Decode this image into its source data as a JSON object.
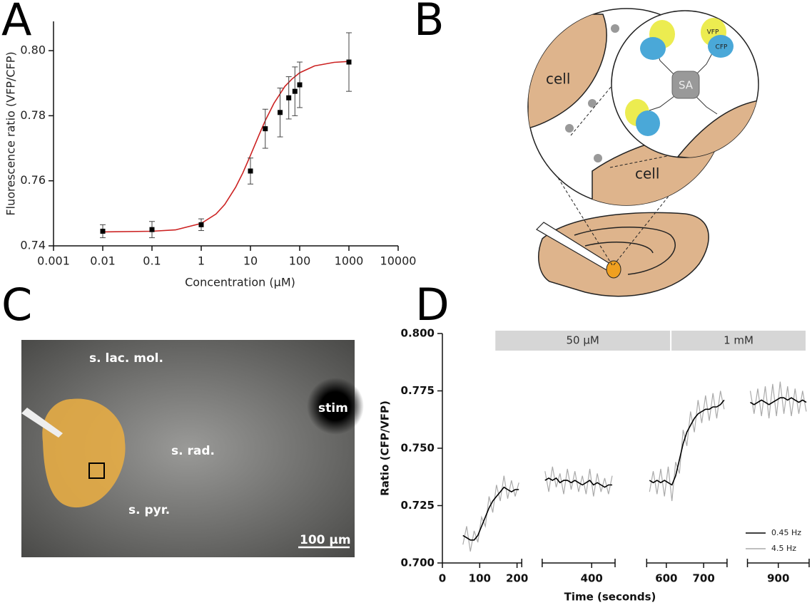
{
  "panels": [
    "A",
    "B",
    "C",
    "D"
  ],
  "diagram": {
    "labels": [
      "cell",
      "cell",
      "SA",
      "VFP",
      "CFP"
    ]
  },
  "image": {
    "labels": [
      "s. lac. mol.",
      "s. rad.",
      "s. pyr.",
      "stim",
      "100 µm"
    ]
  },
  "chart_data": [
    {
      "type": "scatter",
      "xlabel": "Concentration (µM)",
      "ylabel": "Fluorescence ratio (VFP/CFP)",
      "xlog": true,
      "xlim": [
        0.001,
        10000
      ],
      "ylim": [
        0.74,
        0.809
      ],
      "xticks": [
        0.001,
        0.01,
        0.1,
        1,
        10,
        100,
        1000,
        10000
      ],
      "yticks": [
        0.74,
        0.76,
        0.78,
        {
          "value": 0.8,
          "label": "0.80"
        }
      ],
      "color": "#000000",
      "x": [
        0.01,
        0.1,
        1,
        10,
        20,
        40,
        60,
        80,
        100,
        1000
      ],
      "y": [
        0.7445,
        0.745,
        0.7465,
        0.763,
        0.776,
        0.781,
        0.7855,
        0.7875,
        0.7895,
        0.7965
      ],
      "errors": [
        0.002,
        0.0025,
        0.0018,
        0.004,
        0.006,
        0.0075,
        0.0065,
        0.0075,
        0.007,
        0.009
      ],
      "fit": {
        "color": "#cc2222",
        "x": [
          0.01,
          0.1,
          0.3,
          1,
          2,
          3,
          5,
          7,
          10,
          15,
          20,
          30,
          50,
          70,
          100,
          200,
          500,
          1000
        ],
        "y": [
          0.7443,
          0.7445,
          0.7449,
          0.7469,
          0.7498,
          0.7527,
          0.758,
          0.7624,
          0.7678,
          0.7742,
          0.7785,
          0.7838,
          0.789,
          0.7913,
          0.7932,
          0.7953,
          0.7964,
          0.7967
        ]
      }
    },
    {
      "type": "line",
      "xlabel": "Time (seconds)",
      "ylabel": "Ratio (CFP/VFP)",
      "xlim": [
        0,
        975
      ],
      "ylim": [
        0.7,
        0.8
      ],
      "xticks": [
        0,
        100,
        200,
        400,
        600,
        700,
        900
      ],
      "yticks": [
        {
          "value": 0.7,
          "label": "0.700"
        },
        0.725,
        {
          "value": 0.75,
          "label": "0.750"
        },
        0.775,
        {
          "value": 0.8,
          "label": "0.800"
        }
      ],
      "legend": "bottom-right",
      "annotations": [
        {
          "text": "50 µM",
          "start": 140,
          "end": 612
        },
        {
          "text": "1 mM",
          "start": 612,
          "end": 975
        }
      ],
      "x": [
        55,
        65,
        75,
        85,
        95,
        105,
        115,
        125,
        135,
        145,
        155,
        165,
        175,
        185,
        195,
        205,
        235,
        275,
        285,
        295,
        305,
        315,
        325,
        335,
        345,
        355,
        365,
        375,
        385,
        395,
        405,
        415,
        425,
        435,
        445,
        455,
        500,
        555,
        565,
        575,
        585,
        595,
        605,
        615,
        625,
        635,
        645,
        655,
        665,
        675,
        685,
        695,
        705,
        715,
        725,
        735,
        745,
        755,
        790,
        825,
        835,
        845,
        855,
        865,
        875,
        885,
        895,
        905,
        915,
        925,
        935,
        945,
        955,
        965,
        975
      ],
      "series": [
        {
          "name": "4.5 Hz",
          "color": "#aaaaaa",
          "values": [
            0.708,
            0.716,
            0.705,
            0.714,
            0.709,
            0.72,
            0.716,
            0.729,
            0.722,
            0.734,
            0.727,
            0.738,
            0.728,
            0.736,
            0.729,
            0.735,
            null,
            0.74,
            0.731,
            0.742,
            0.733,
            0.739,
            0.73,
            0.741,
            0.732,
            0.74,
            0.731,
            0.738,
            0.73,
            0.741,
            0.729,
            0.739,
            0.731,
            0.737,
            0.73,
            0.738,
            null,
            0.731,
            0.74,
            0.73,
            0.741,
            0.729,
            0.742,
            0.727,
            0.744,
            0.739,
            0.758,
            0.751,
            0.766,
            0.757,
            0.771,
            0.761,
            0.773,
            0.762,
            0.774,
            0.763,
            0.775,
            0.767,
            null,
            0.775,
            0.765,
            0.776,
            0.764,
            0.777,
            0.763,
            0.778,
            0.764,
            0.779,
            0.765,
            0.777,
            0.764,
            0.776,
            0.765,
            0.775,
            0.766
          ]
        },
        {
          "name": "0.45 Hz",
          "color": "#000000",
          "values": [
            0.712,
            0.711,
            0.71,
            0.71,
            0.712,
            0.716,
            0.72,
            0.724,
            0.727,
            0.729,
            0.731,
            0.733,
            0.732,
            0.731,
            0.732,
            0.732,
            null,
            0.736,
            0.737,
            0.736,
            0.737,
            0.735,
            0.736,
            0.736,
            0.735,
            0.736,
            0.735,
            0.734,
            0.735,
            0.736,
            0.734,
            0.735,
            0.734,
            0.733,
            0.734,
            0.734,
            null,
            0.736,
            0.735,
            0.736,
            0.735,
            0.736,
            0.735,
            0.734,
            0.738,
            0.745,
            0.752,
            0.757,
            0.76,
            0.763,
            0.765,
            0.766,
            0.767,
            0.767,
            0.768,
            0.768,
            0.769,
            0.771,
            null,
            0.77,
            0.769,
            0.77,
            0.771,
            0.77,
            0.769,
            0.77,
            0.771,
            0.772,
            0.772,
            0.771,
            0.772,
            0.771,
            0.77,
            0.771,
            0.77
          ]
        }
      ]
    }
  ]
}
